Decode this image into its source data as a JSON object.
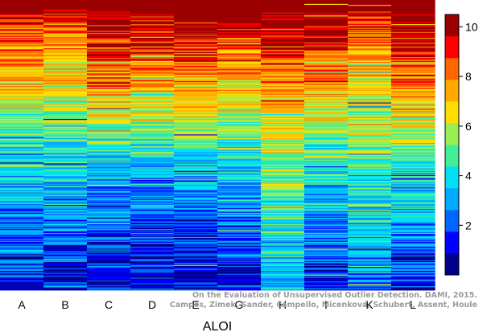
{
  "chart_data": {
    "type": "heatmap",
    "title": "",
    "xlabel": "ALOI",
    "ylabel": "",
    "categories": [
      "A",
      "B",
      "C",
      "D",
      "E",
      "G",
      "H",
      "I",
      "K",
      "L"
    ],
    "colorbar": {
      "range": [
        0,
        10.5
      ],
      "ticks": [
        2,
        4,
        6,
        8,
        10
      ],
      "tick_labels": [
        "2",
        "4",
        "6",
        "8",
        "10"
      ],
      "colors": [
        "#00008b",
        "#0000ff",
        "#0066ff",
        "#00aaff",
        "#00e0f0",
        "#44ee99",
        "#99ee55",
        "#ffdd00",
        "#ffaa00",
        "#ff6600",
        "#ff0000",
        "#9b0000"
      ]
    },
    "columns": [
      {
        "category": "A",
        "profile": [
          [
            0,
            10.3
          ],
          [
            0.02,
            10.2
          ],
          [
            0.05,
            9.5
          ],
          [
            0.15,
            8.2
          ],
          [
            0.35,
            6.2
          ],
          [
            0.55,
            4.2
          ],
          [
            0.75,
            2.9
          ],
          [
            0.92,
            1.9
          ],
          [
            1,
            1.0
          ]
        ]
      },
      {
        "category": "B",
        "profile": [
          [
            0,
            10.3
          ],
          [
            0.02,
            10.0
          ],
          [
            0.08,
            8.8
          ],
          [
            0.2,
            7.2
          ],
          [
            0.4,
            5.2
          ],
          [
            0.6,
            3.6
          ],
          [
            0.8,
            2.4
          ],
          [
            1,
            1.0
          ]
        ]
      },
      {
        "category": "C",
        "profile": [
          [
            0,
            10.4
          ],
          [
            0.08,
            10.2
          ],
          [
            0.15,
            9.4
          ],
          [
            0.28,
            7.9
          ],
          [
            0.45,
            5.2
          ],
          [
            0.6,
            3.3
          ],
          [
            0.8,
            2.0
          ],
          [
            1,
            0.9
          ]
        ]
      },
      {
        "category": "D",
        "profile": [
          [
            0,
            10.4
          ],
          [
            0.06,
            10.2
          ],
          [
            0.15,
            9.2
          ],
          [
            0.3,
            7.6
          ],
          [
            0.45,
            5.2
          ],
          [
            0.6,
            3.1
          ],
          [
            0.8,
            1.9
          ],
          [
            1,
            0.9
          ]
        ]
      },
      {
        "category": "E",
        "profile": [
          [
            0,
            10.4
          ],
          [
            0.08,
            10.2
          ],
          [
            0.2,
            8.6
          ],
          [
            0.35,
            6.6
          ],
          [
            0.55,
            3.9
          ],
          [
            0.75,
            2.3
          ],
          [
            1,
            0.9
          ]
        ]
      },
      {
        "category": "G",
        "profile": [
          [
            0,
            10.4
          ],
          [
            0.06,
            10.2
          ],
          [
            0.15,
            8.6
          ],
          [
            0.35,
            6.5
          ],
          [
            0.55,
            4.2
          ],
          [
            0.75,
            2.6
          ],
          [
            1,
            1.0
          ]
        ]
      },
      {
        "category": "H",
        "profile": [
          [
            0,
            10.4
          ],
          [
            0.08,
            10.1
          ],
          [
            0.2,
            8.6
          ],
          [
            0.4,
            6.8
          ],
          [
            0.6,
            5.2
          ],
          [
            0.8,
            4.2
          ],
          [
            1,
            3.2
          ]
        ]
      },
      {
        "category": "I",
        "profile": [
          [
            0,
            10.4
          ],
          [
            0.08,
            10.2
          ],
          [
            0.2,
            8.6
          ],
          [
            0.4,
            6.0
          ],
          [
            0.6,
            4.2
          ],
          [
            0.8,
            2.6
          ],
          [
            1,
            1.2
          ]
        ]
      },
      {
        "category": "K",
        "profile": [
          [
            0,
            10.4
          ],
          [
            0.06,
            9.3
          ],
          [
            0.2,
            7.4
          ],
          [
            0.4,
            5.6
          ],
          [
            0.6,
            4.6
          ],
          [
            0.8,
            3.6
          ],
          [
            1,
            2.6
          ]
        ]
      },
      {
        "category": "L",
        "profile": [
          [
            0,
            10.4
          ],
          [
            0.08,
            10.1
          ],
          [
            0.2,
            8.9
          ],
          [
            0.4,
            6.6
          ],
          [
            0.6,
            4.3
          ],
          [
            0.8,
            2.8
          ],
          [
            1,
            1.2
          ]
        ]
      }
    ]
  },
  "watermark": {
    "line1": "On the Evaluation of Unsupervised Outlier Detection. DAMI, 2015.",
    "line2": "Campos, Zimek, Sander, Campello, Micenková, Schubert, Assent, Houle"
  }
}
